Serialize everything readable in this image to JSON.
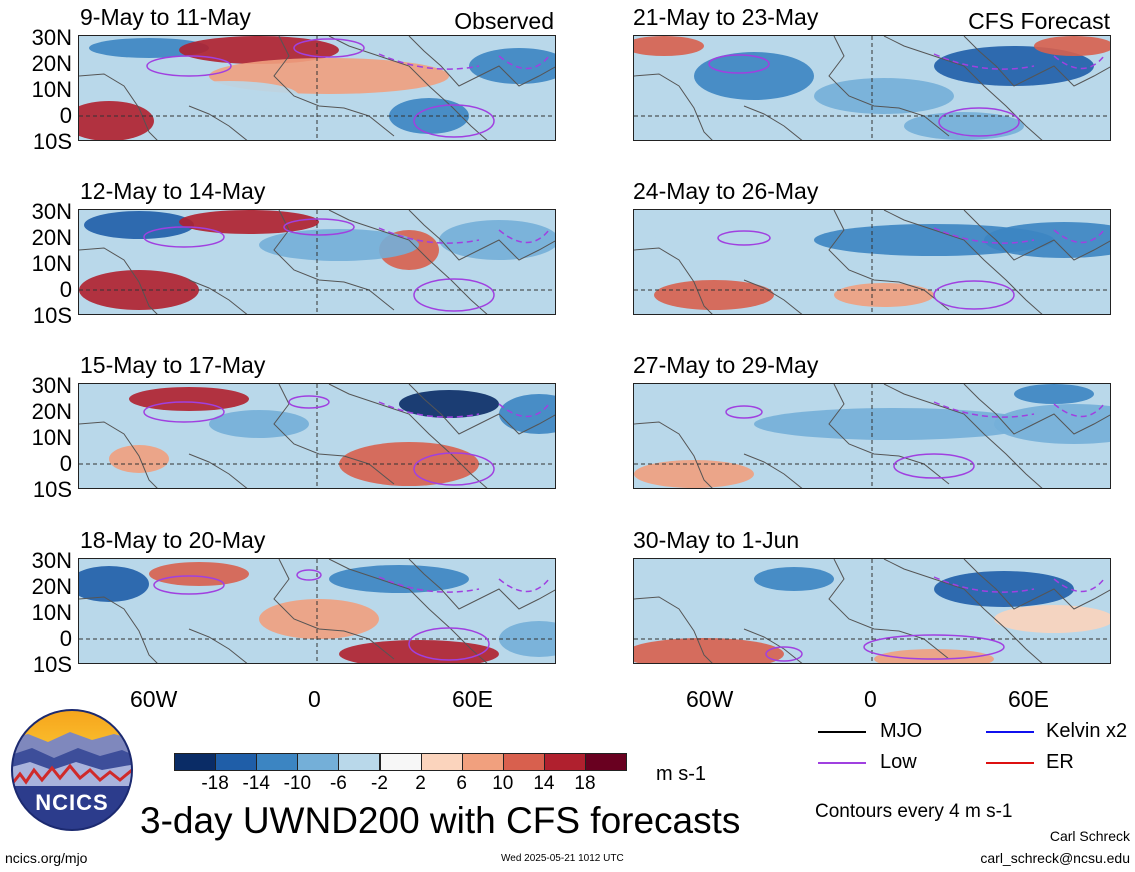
{
  "header": {
    "observed_label": "Observed",
    "forecast_label": "CFS Forecast"
  },
  "panels": [
    {
      "id": "o1",
      "title": "9-May to 11-May"
    },
    {
      "id": "f1",
      "title": "21-May to 23-May"
    },
    {
      "id": "o2",
      "title": "12-May to 14-May"
    },
    {
      "id": "f2",
      "title": "24-May to 26-May"
    },
    {
      "id": "o3",
      "title": "15-May to 17-May"
    },
    {
      "id": "f3",
      "title": "27-May to 29-May"
    },
    {
      "id": "o4",
      "title": "18-May to 20-May"
    },
    {
      "id": "f4",
      "title": "30-May to 1-Jun"
    }
  ],
  "y_axis": [
    "30N",
    "20N",
    "10N",
    "0",
    "10S"
  ],
  "x_axis": [
    "60W",
    "0",
    "60E"
  ],
  "legend": {
    "mjo": "MJO",
    "kelvin": "Kelvin x2",
    "low": "Low",
    "er": "ER",
    "colors": {
      "mjo": "#000000",
      "kelvin": "#1010ee",
      "low": "#a040e0",
      "er": "#dd1010"
    },
    "contours": "Contours every 4 m s-1"
  },
  "colorbar": {
    "labels": [
      "-18",
      "-14",
      "-10",
      "-6",
      "-2",
      "2",
      "6",
      "10",
      "14",
      "18"
    ],
    "colors": [
      "#0a2c66",
      "#1f5ea8",
      "#3c85c2",
      "#74afd8",
      "#b9d8ea",
      "#f7f7f7",
      "#fbd4bd",
      "#f1a07e",
      "#d8604e",
      "#b0202e",
      "#690020"
    ],
    "units": "m s-1"
  },
  "logo": {
    "text": "NCICS"
  },
  "title": "3-day UWND200 with CFS forecasts",
  "footer": {
    "url": "ncics.org/mjo",
    "timestamp": "Wed 2025-05-21 1012 UTC",
    "author": "Carl Schreck",
    "email": "carl_schreck@ncsu.edu"
  }
}
